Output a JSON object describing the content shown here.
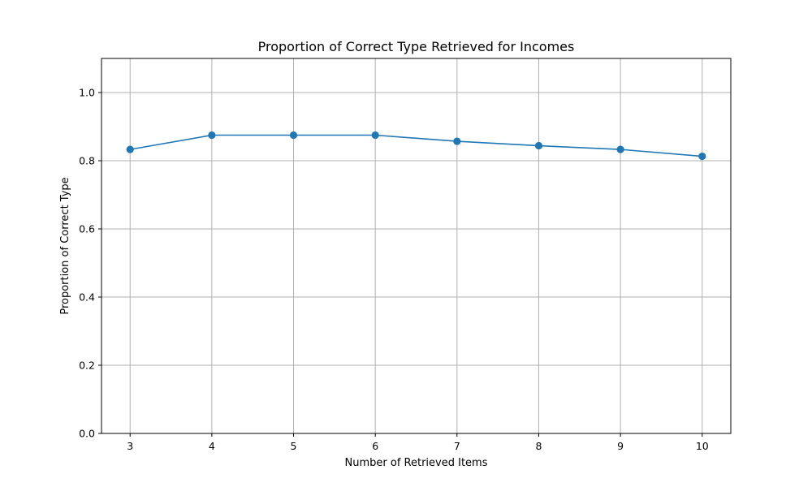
{
  "chart_data": {
    "type": "line",
    "title": "Proportion of Correct Type Retrieved for Incomes",
    "xlabel": "Number of Retrieved Items",
    "ylabel": "Proportion of Correct Type",
    "x": [
      3,
      4,
      5,
      6,
      7,
      8,
      9,
      10
    ],
    "series": [
      {
        "values": [
          0.833,
          0.875,
          0.875,
          0.875,
          0.857,
          0.844,
          0.833,
          0.813
        ],
        "color": "#1f77b4",
        "marker": "circle"
      }
    ],
    "xticks": [
      3,
      4,
      5,
      6,
      7,
      8,
      9,
      10
    ],
    "yticks": [
      0.0,
      0.2,
      0.4,
      0.6,
      0.8,
      1.0
    ],
    "xlim": [
      2.65,
      10.35
    ],
    "ylim": [
      0.0,
      1.1
    ],
    "grid": true,
    "legend": "none"
  }
}
